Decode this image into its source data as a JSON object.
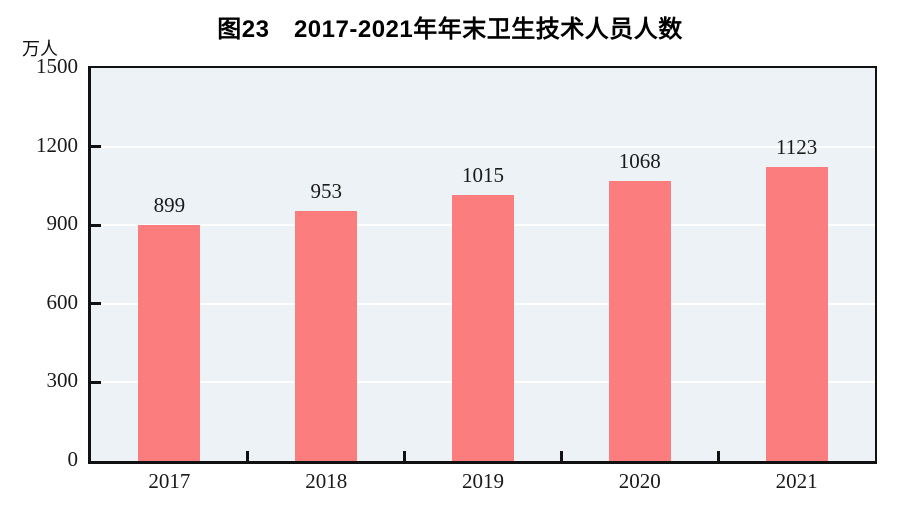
{
  "chart_data": {
    "type": "bar",
    "title": "图23　2017-2021年年末卫生技术人员人数",
    "categories": [
      "2017",
      "2018",
      "2019",
      "2020",
      "2021"
    ],
    "values": [
      899,
      953,
      1015,
      1068,
      1123
    ],
    "xlabel": "",
    "ylabel": "万人",
    "ylim": [
      0,
      1500
    ],
    "yticks": [
      0,
      300,
      600,
      900,
      1200,
      1500
    ],
    "grid": true,
    "legend": "none",
    "bar_color": "#FC7D7D",
    "plot_bg": "#ECF2F5",
    "gridline_color": "#FFFFFF",
    "axis_color": "#111111",
    "text_color": "#1a1a1a"
  }
}
